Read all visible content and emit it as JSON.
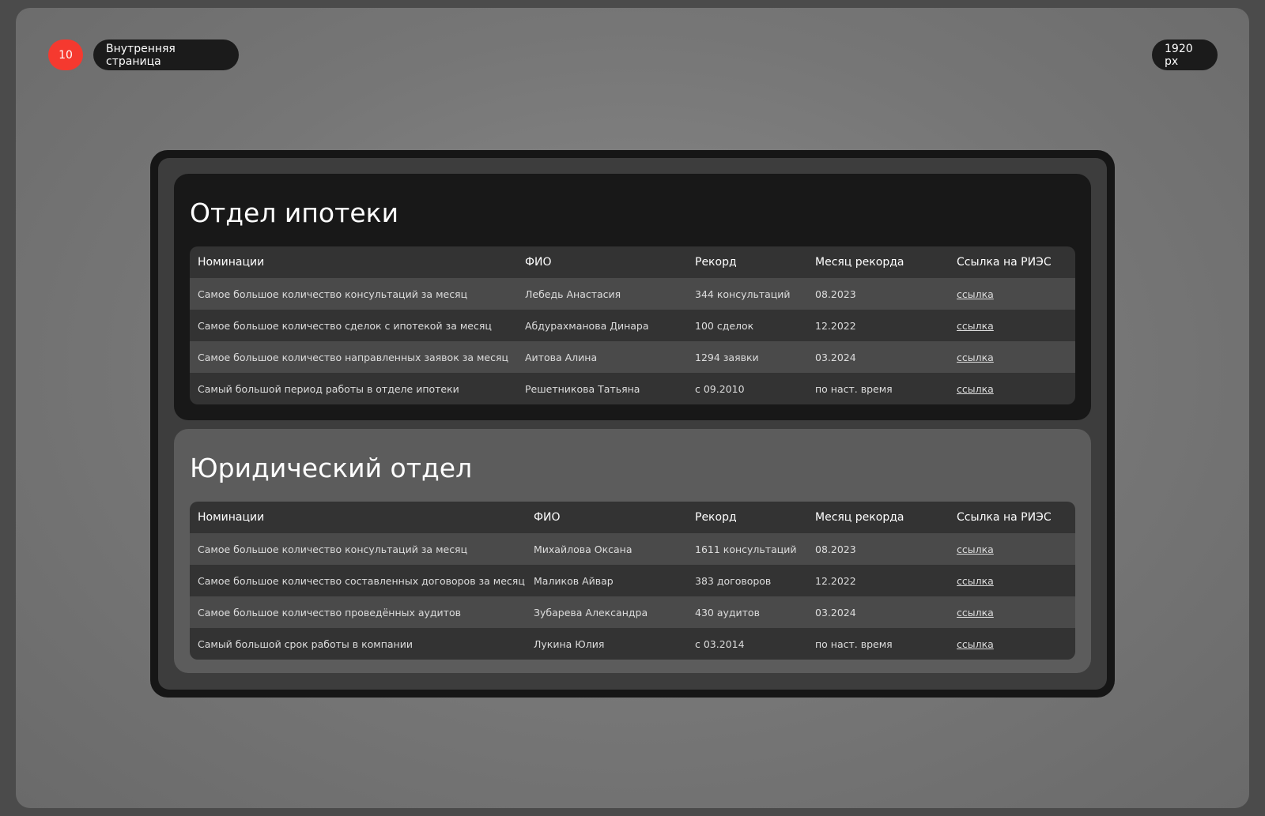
{
  "header": {
    "number": "10",
    "label": "Внутренняя страница",
    "width": "1920 px"
  },
  "sections": [
    {
      "title": "Отдел ипотеки",
      "columns": [
        "Номинации",
        "ФИО",
        "Рекорд",
        "Месяц рекорда",
        "Ссылка на РИЭС"
      ],
      "rows": [
        [
          "Самое большое количество консультаций за месяц",
          "Лебедь Анастасия",
          "344 консультаций",
          "08.2023",
          "ссылка"
        ],
        [
          "Самое большое количество сделок с ипотекой за месяц",
          "Абдурахманова Динара",
          "100 сделок",
          "12.2022",
          "ссылка"
        ],
        [
          "Самое большое количество направленных заявок за месяц",
          "Аитова Алина",
          "1294 заявки",
          "03.2024",
          "ссылка"
        ],
        [
          "Самый большой период работы в отделе ипотеки",
          "Решетникова Татьяна",
          "с 09.2010",
          "по наст. время",
          "ссылка"
        ]
      ]
    },
    {
      "title": "Юридический отдел",
      "columns": [
        "Номинации",
        "ФИО",
        "Рекорд",
        "Месяц рекорда",
        "Ссылка на РИЭС"
      ],
      "rows": [
        [
          "Самое большое количество консультаций за месяц",
          "Михайлова Оксана",
          "1611 консультаций",
          "08.2023",
          "ссылка"
        ],
        [
          "Самое большое количество составленных договоров за месяц",
          "Маликов Айвар",
          "383 договоров",
          "12.2022",
          "ссылка"
        ],
        [
          "Самое большое количество проведённых аудитов",
          "Зубарева Александра",
          "430 аудитов",
          "03.2024",
          "ссылка"
        ],
        [
          "Самый большой срок работы в компании",
          "Лукина Юлия",
          "с 03.2014",
          "по наст. время",
          "ссылка"
        ]
      ]
    }
  ]
}
